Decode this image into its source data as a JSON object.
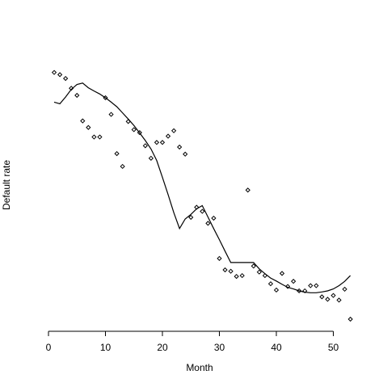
{
  "chart_data": {
    "type": "scatter",
    "xlabel": "Month",
    "ylabel": "Default rate",
    "xlim": [
      0,
      53
    ],
    "ylim": [
      0,
      1
    ],
    "x_ticks": [
      0,
      10,
      20,
      30,
      40,
      50
    ],
    "y_ticks_shown": false,
    "series": [
      {
        "kind": "points",
        "marker": "diamond",
        "x": [
          1,
          2,
          3,
          4,
          5,
          6,
          7,
          8,
          9,
          10,
          11,
          12,
          13,
          14,
          15,
          16,
          17,
          18,
          19,
          20,
          21,
          22,
          23,
          24,
          25,
          26,
          27,
          28,
          29,
          30,
          31,
          32,
          33,
          34,
          35,
          36,
          37,
          38,
          39,
          40,
          41,
          42,
          43,
          44,
          45,
          46,
          47,
          48,
          49,
          50,
          51,
          52,
          53
        ],
        "y": [
          0.906,
          0.898,
          0.884,
          0.848,
          0.822,
          0.728,
          0.704,
          0.669,
          0.669,
          0.813,
          0.752,
          0.608,
          0.561,
          0.726,
          0.696,
          0.685,
          0.637,
          0.591,
          0.649,
          0.649,
          0.672,
          0.692,
          0.632,
          0.606,
          0.374,
          0.411,
          0.396,
          0.352,
          0.371,
          0.223,
          0.181,
          0.176,
          0.157,
          0.16,
          0.474,
          0.195,
          0.173,
          0.16,
          0.13,
          0.107,
          0.168,
          0.12,
          0.139,
          0.104,
          0.104,
          0.123,
          0.123,
          0.082,
          0.073,
          0.087,
          0.07,
          0.11,
          0.0
        ]
      },
      {
        "kind": "line",
        "x": [
          1,
          2,
          3,
          4,
          5,
          6,
          7,
          8,
          9,
          10,
          11,
          12,
          13,
          14,
          15,
          16,
          17,
          18,
          19,
          20,
          21,
          22,
          23,
          24,
          25,
          26,
          27,
          28,
          29,
          30,
          31,
          32,
          33,
          34,
          35,
          36,
          37,
          38,
          39,
          40,
          41,
          42,
          43,
          44,
          45,
          46,
          47,
          48,
          49,
          50,
          51,
          52,
          53
        ],
        "y": [
          0.797,
          0.791,
          0.816,
          0.844,
          0.862,
          0.867,
          0.85,
          0.838,
          0.827,
          0.813,
          0.797,
          0.78,
          0.758,
          0.735,
          0.711,
          0.684,
          0.656,
          0.625,
          0.583,
          0.521,
          0.458,
          0.391,
          0.333,
          0.368,
          0.385,
          0.405,
          0.417,
          0.375,
          0.333,
          0.292,
          0.25,
          0.208,
          0.208,
          0.208,
          0.208,
          0.208,
          0.185,
          0.167,
          0.151,
          0.14,
          0.128,
          0.117,
          0.111,
          0.104,
          0.099,
          0.097,
          0.097,
          0.1,
          0.104,
          0.111,
          0.123,
          0.139,
          0.16
        ]
      }
    ]
  }
}
